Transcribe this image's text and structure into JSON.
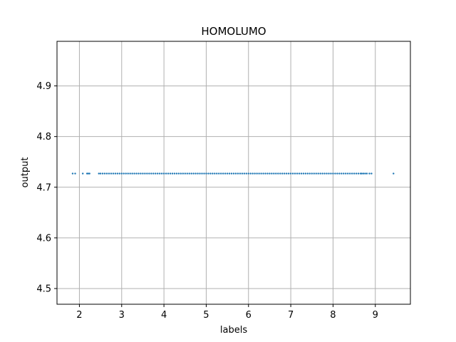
{
  "chart_data": {
    "type": "scatter",
    "title": "HOMOLUMO",
    "xlabel": "labels",
    "ylabel": "output",
    "xlim": [
      1.47,
      9.83
    ],
    "ylim": [
      4.469,
      4.988
    ],
    "xticks": [
      2,
      3,
      4,
      5,
      6,
      7,
      8,
      9
    ],
    "yticks": [
      4.5,
      4.6,
      4.7,
      4.8,
      4.9
    ],
    "grid": true,
    "legend": "none",
    "marker_color": "#1f77b4",
    "series": [
      {
        "constant_y": 4.727,
        "x": [
          1.84,
          1.9,
          2.08,
          2.18,
          2.21,
          2.24,
          2.46,
          2.5,
          2.55,
          2.6,
          2.65,
          2.7,
          2.75,
          2.8,
          2.85,
          2.9,
          2.95,
          3.0,
          3.05,
          3.1,
          3.15,
          3.2,
          3.25,
          3.3,
          3.35,
          3.4,
          3.45,
          3.5,
          3.55,
          3.6,
          3.65,
          3.7,
          3.75,
          3.8,
          3.85,
          3.9,
          3.95,
          4.0,
          4.05,
          4.1,
          4.15,
          4.2,
          4.25,
          4.3,
          4.35,
          4.4,
          4.45,
          4.5,
          4.55,
          4.6,
          4.65,
          4.7,
          4.75,
          4.8,
          4.85,
          4.9,
          4.95,
          5.0,
          5.05,
          5.1,
          5.15,
          5.2,
          5.25,
          5.3,
          5.35,
          5.4,
          5.45,
          5.5,
          5.55,
          5.6,
          5.65,
          5.7,
          5.75,
          5.8,
          5.85,
          5.9,
          5.95,
          6.0,
          6.05,
          6.1,
          6.15,
          6.2,
          6.25,
          6.3,
          6.35,
          6.4,
          6.45,
          6.5,
          6.55,
          6.6,
          6.65,
          6.7,
          6.75,
          6.8,
          6.85,
          6.9,
          6.95,
          7.0,
          7.05,
          7.1,
          7.15,
          7.2,
          7.25,
          7.3,
          7.35,
          7.4,
          7.45,
          7.5,
          7.55,
          7.6,
          7.65,
          7.7,
          7.75,
          7.8,
          7.85,
          7.9,
          7.95,
          8.0,
          8.05,
          8.1,
          8.15,
          8.2,
          8.25,
          8.3,
          8.35,
          8.4,
          8.45,
          8.5,
          8.55,
          8.6,
          8.65,
          8.68,
          8.72,
          8.76,
          8.8,
          8.86,
          8.91,
          9.43
        ]
      }
    ]
  }
}
